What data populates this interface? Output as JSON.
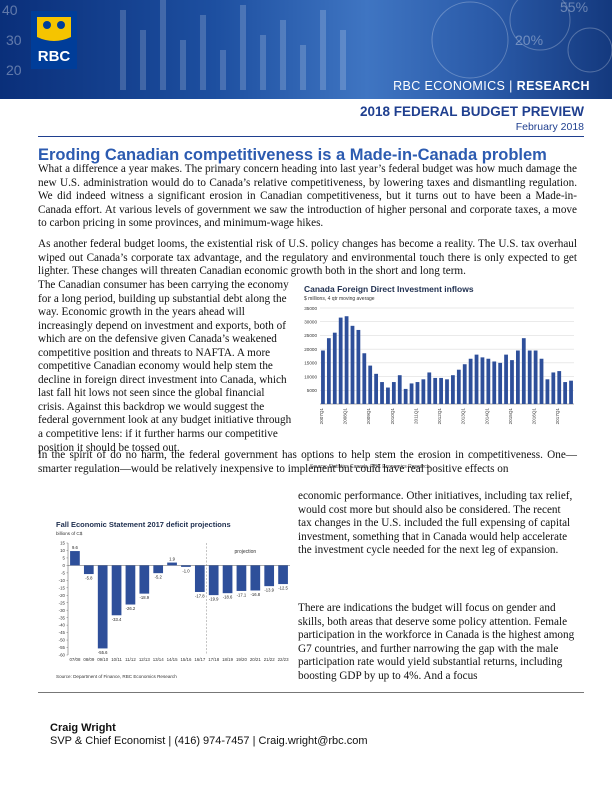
{
  "header": {
    "banner_title": "RBC ECONOMICS",
    "banner_separator": " | ",
    "banner_research": "RESEARCH",
    "logo_text": "RBC",
    "doc_title": "2018 FEDERAL BUDGET PREVIEW",
    "doc_date": "February 2018"
  },
  "headline": "Eroding Canadian competitiveness is a Made-in-Canada problem",
  "paragraphs": {
    "p1": "What a difference a year makes. The primary concern heading into last year’s federal budget was how much damage the new U.S. administration would do to Canada’s relative competitiveness, by lowering taxes and dismantling regulation. We did indeed witness a significant erosion in Canadian competitiveness, but it turns out to have been a Made-in-Canada effort. At various levels of government we saw the introduction of higher personal and corporate taxes, a move to carbon pricing in some provinces, and minimum-wage hikes.",
    "p2": "As another federal budget looms, the existential risk of U.S. policy changes has become a reality. The U.S. tax overhaul wiped out Canada’s corporate tax advantage, and the regulatory and environmental touch there is only expected to get lighter. These changes will threaten Canadian economic growth both in the short and long term.",
    "p3": "The Canadian consumer has been carrying the economy for a long period, building up substantial debt along the way. Economic growth in the years ahead will increasingly depend on investment and exports, both of which are on the defensive given Canada’s weakened competitive position and threats to NAFTA. A more competitive Canadian economy would help stem the decline in foreign direct investment into Canada, which last fall hit lows not seen since the global financial crisis. Against this backdrop we would suggest the federal government look at any budget initiative through a competitive lens: if it further harms our competitive position it should be tossed out.",
    "p4": "In the spirit of do no harm, the federal government has options to help stem the erosion in competitiveness. One—smarter regulation—would be relatively inexpensive to implement but could have real positive effects on",
    "p5": "economic performance. Other initiatives, including tax relief, would cost more but should also be considered. The recent tax changes in the U.S. included the full expensing of capital investment, something that in Canada would help accelerate the investment cycle needed for the next leg of expansion.",
    "p6": "There are indications the budget will focus on gender and skills, both areas that deserve some policy attention. Female participation in the workforce in Canada is the highest among G7 countries, and further narrowing the gap with the male participation rate would yield substantial returns, including boosting GDP by up to 4%. And a focus"
  },
  "footer": {
    "author": "Craig Wright",
    "contact": "SVP & Chief Economist | (416) 974-7457 | Craig.wright@rbc.com"
  },
  "colors": {
    "accent_blue": "#2c5bb0",
    "navy": "#1f3f8f",
    "bar_blue": "#2e4f9a",
    "logo_gold": "#f5c400"
  },
  "chart_data": [
    {
      "type": "bar",
      "title": "Canada Foreign Direct Investment inflows",
      "subtitle": "$ millions, 4 qtr moving average",
      "source": "Source: Statistics Canada, RBC Economics Research",
      "ylim": [
        0,
        35000
      ],
      "yticks": [
        "5000",
        "10000",
        "15000",
        "20000",
        "25000",
        "30000",
        "35000"
      ],
      "ytick_values": [
        5000,
        10000,
        15000,
        20000,
        25000,
        30000,
        35000
      ],
      "xticks": [
        "2007Q1",
        "2008Q1",
        "2009Q1",
        "2010Q1",
        "2011Q1",
        "2012Q1",
        "2013Q1",
        "2014Q1",
        "2015Q1",
        "2016Q1",
        "2017Q1"
      ],
      "values": [
        19500,
        24000,
        26000,
        31500,
        32000,
        28500,
        27000,
        18500,
        14000,
        11000,
        8000,
        6000,
        8000,
        10500,
        5500,
        7500,
        8000,
        9000,
        11500,
        9500,
        9500,
        9000,
        10500,
        12500,
        14500,
        16500,
        18000,
        17000,
        16500,
        15500,
        15000,
        18000,
        16000,
        19500,
        24000,
        19500,
        19500,
        16500,
        9000,
        11500,
        12000,
        8000,
        8500
      ],
      "grid": true
    },
    {
      "type": "bar",
      "title": "Fall Economic Statement 2017 deficit projections",
      "subtitle": "billions of C$",
      "source": "Source: Department of Finance, RBC Economics Research",
      "annotation": "projection",
      "ylim": [
        -60,
        15
      ],
      "yticks": [
        "15",
        "10",
        "5",
        "0",
        "-5",
        "-10",
        "-15",
        "-20",
        "-25",
        "-30",
        "-35",
        "-40",
        "-45",
        "-50",
        "-55",
        "-60"
      ],
      "ytick_values": [
        15,
        10,
        5,
        0,
        -5,
        -10,
        -15,
        -20,
        -25,
        -30,
        -35,
        -40,
        -45,
        -50,
        -55,
        -60
      ],
      "categories": [
        "07/08",
        "08/09",
        "09/10",
        "10/11",
        "11/12",
        "12/13",
        "13/14",
        "14/15",
        "15/16",
        "16/17",
        "17/18",
        "18/19",
        "19/20",
        "20/21",
        "21/22",
        "22/23"
      ],
      "values": [
        9.6,
        -5.8,
        -55.6,
        -33.4,
        -26.2,
        -18.9,
        -5.2,
        1.9,
        -1.0,
        -17.8,
        -19.9,
        -18.6,
        -17.1,
        -16.8,
        -13.9,
        -12.5
      ],
      "labels": [
        "9.6",
        "-5.8",
        "-55.6",
        "-33.4",
        "-26.2",
        "-18.9",
        "-5.2",
        "1.9",
        "-1.0",
        "-17.8",
        "-19.9",
        "-18.6",
        "-17.1",
        "-16.8",
        "-13.9",
        "-12.5"
      ],
      "projection_start_index": 10,
      "grid": false
    }
  ]
}
